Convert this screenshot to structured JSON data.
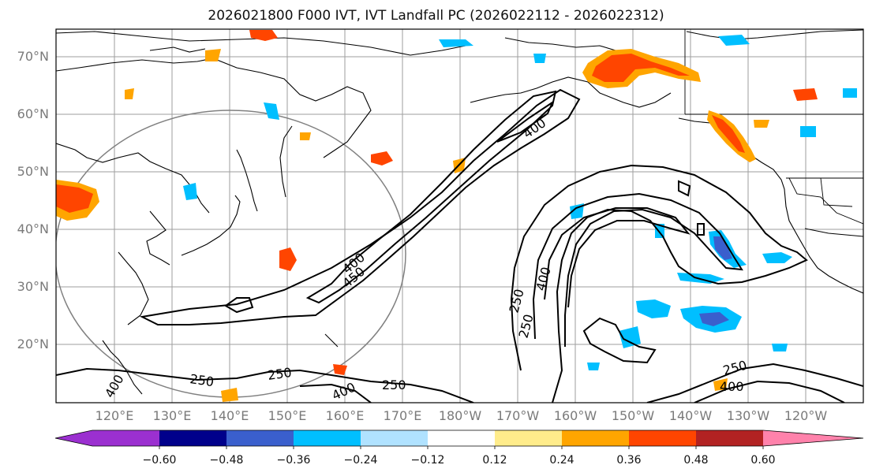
{
  "title": "2026021800 F000 IVT, IVT Landfall PC (2026022112 - 2026022312)",
  "lat_labels": [
    "70°N",
    "60°N",
    "50°N",
    "40°N",
    "30°N",
    "20°N"
  ],
  "lon_labels": [
    "120°E",
    "130°E",
    "140°E",
    "150°E",
    "160°E",
    "170°E",
    "180°W",
    "170°W",
    "160°W",
    "150°W",
    "140°W",
    "130°W",
    "120°W"
  ],
  "colorbar": {
    "ticks": [
      "−0.60",
      "−0.48",
      "−0.36",
      "−0.24",
      "−0.12",
      "0.12",
      "0.24",
      "0.36",
      "0.48",
      "0.60"
    ],
    "colors": [
      "#9b30d0",
      "#00008b",
      "#3a5fcd",
      "#00bfff",
      "#b0e2ff",
      "#ffffff",
      "#ffec8b",
      "#ffa500",
      "#ff4500",
      "#b22222",
      "#ff82ab"
    ]
  },
  "contour_labels": [
    "400",
    "450",
    "400",
    "250",
    "400",
    "250",
    "400",
    "250",
    "250",
    "250",
    "400",
    "250",
    "400"
  ],
  "map_extent": {
    "lon_min": 110,
    "lon_max": 250,
    "lat_min": 10,
    "lat_max": 75
  }
}
